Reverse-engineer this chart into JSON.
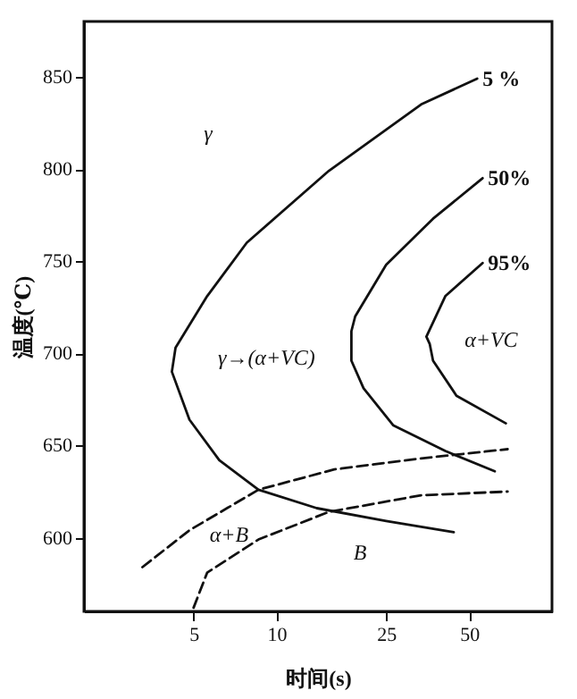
{
  "chart_data": {
    "type": "line",
    "xlabel": "时间(s)",
    "ylabel": "温度(℃)",
    "log": "x",
    "xlim": [
      2,
      100
    ],
    "xticks": [
      5,
      10,
      25,
      50
    ],
    "ylim": [
      560,
      880
    ],
    "yticks": [
      600,
      650,
      700,
      750,
      800,
      850
    ],
    "grid": false,
    "marker": "none",
    "series": [
      {
        "name": "5 %",
        "color": "#111111",
        "line_style": "solid",
        "x": [
          53.5,
          33.5,
          15.5,
          7.8,
          5.6,
          4.3,
          4.17,
          4.83,
          6.2,
          8.6,
          14,
          25,
          44
        ],
        "values": [
          849,
          835,
          799,
          760,
          731,
          703,
          690,
          664,
          642,
          626,
          616,
          609,
          603
        ]
      },
      {
        "name": "50%",
        "color": "#111111",
        "line_style": "solid",
        "x": [
          56,
          37,
          25,
          19.3,
          18.7,
          18.7,
          20.7,
          26.5,
          41,
          62
        ],
        "values": [
          795,
          773,
          748,
          720,
          712,
          696,
          681,
          661,
          647,
          636
        ]
      },
      {
        "name": "95%",
        "color": "#111111",
        "line_style": "solid",
        "x": [
          56,
          41,
          35,
          36,
          37,
          45,
          68
        ],
        "values": [
          749,
          731,
          709,
          705,
          696,
          677,
          662
        ]
      },
      {
        "color": "#111111",
        "line_style": "dashed",
        "x": [
          3.26,
          4.83,
          8.6,
          16.2,
          33.5,
          69
        ],
        "values": [
          584,
          604,
          626,
          637,
          643,
          648
        ]
      },
      {
        "color": "#111111",
        "line_style": "dashed",
        "x": [
          5,
          5.6,
          8.6,
          15.5,
          33.5,
          69
        ],
        "values": [
          562,
          581,
          599,
          614,
          623,
          625
        ]
      }
    ],
    "annotations": [
      "γ",
      "γ→(α+VC)",
      "α+VC",
      "α+B",
      "B"
    ]
  }
}
